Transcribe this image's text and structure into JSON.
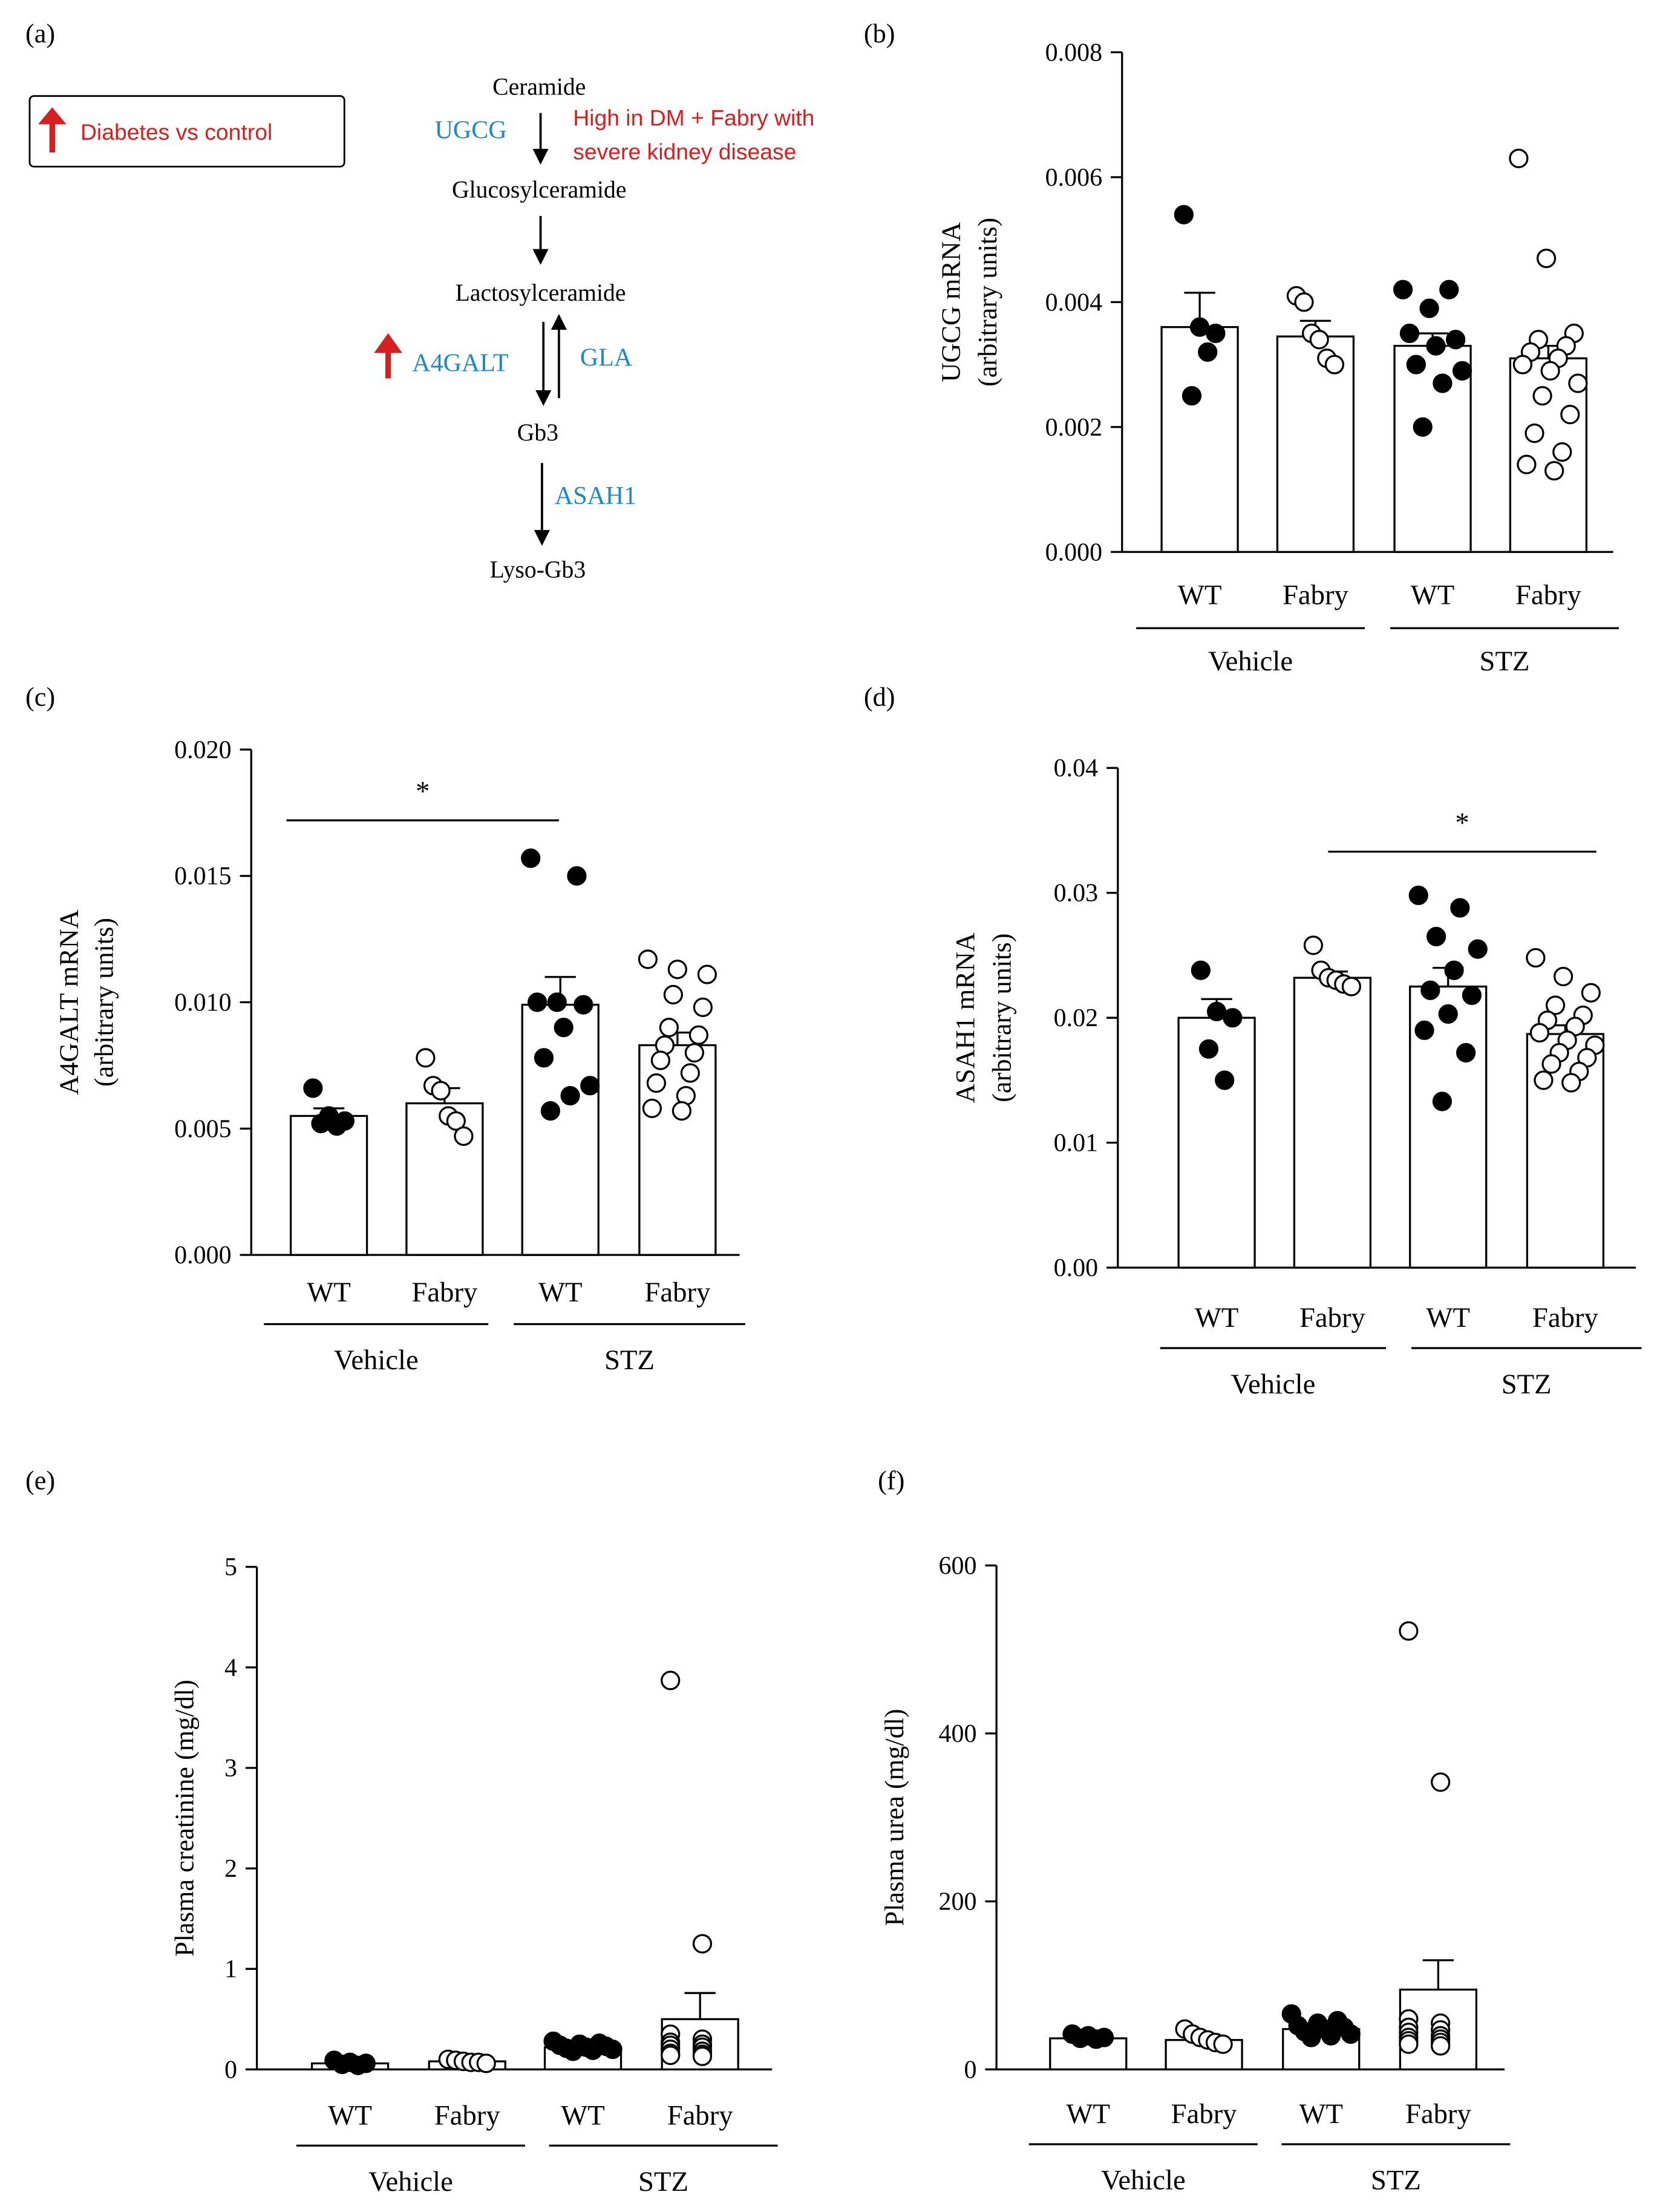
{
  "panel_labels": [
    "(a)",
    "(b)",
    "(c)",
    "(d)",
    "(e)",
    "(f)"
  ],
  "pathway": {
    "legend": {
      "text": "Diabetes vs control",
      "color": "#d42020"
    },
    "nodes": [
      "Ceramide",
      "Glucosylceramide",
      "Lactosylceramide",
      "Gb3",
      "Lyso-Gb3"
    ],
    "enzymes": {
      "ugcg": "UGCG",
      "a4galt": "A4GALT",
      "gla": "GLA",
      "asah1": "ASAH1"
    },
    "note_line1": "High in DM + Fabry with",
    "note_line2": "severe kidney disease",
    "enzyme_color": "#1e88c8",
    "highlight_color": "#d42020"
  },
  "common": {
    "genotypes": [
      "WT",
      "Fabry",
      "WT",
      "Fabry"
    ],
    "treatments": [
      "Vehicle",
      "STZ"
    ]
  },
  "chart_data": [
    {
      "panel": "(b)",
      "type": "bar",
      "ylabel": "UGCG  mRNA",
      "ylabel2": "(arbitrary units)",
      "ylim": [
        0,
        0.008
      ],
      "ticks": [
        0,
        0.002,
        0.004,
        0.006,
        0.008
      ],
      "tick_labels": [
        "0.000",
        "0.002",
        "0.004",
        "0.006",
        "0.008"
      ],
      "categories": [
        "WT Vehicle",
        "Fabry Vehicle",
        "WT STZ",
        "Fabry STZ"
      ],
      "values": [
        0.0036,
        0.00345,
        0.0033,
        0.0031
      ],
      "sem": [
        0.00055,
        0.00025,
        0.0002,
        0.0002
      ],
      "filled": [
        true,
        false,
        true,
        false
      ],
      "points": [
        [
          0.0054,
          0.0036,
          0.0035,
          0.0025,
          0.0032
        ],
        [
          0.0041,
          0.004,
          0.0035,
          0.0034,
          0.0031,
          0.003
        ],
        [
          0.0042,
          0.0042,
          0.0039,
          0.0035,
          0.0034,
          0.0033,
          0.003,
          0.0029,
          0.0027,
          0.002
        ],
        [
          0.0063,
          0.0047,
          0.0035,
          0.0034,
          0.0033,
          0.0032,
          0.0031,
          0.003,
          0.0029,
          0.0027,
          0.0025,
          0.0022,
          0.0019,
          0.0016,
          0.0014,
          0.0013
        ]
      ],
      "significance": null
    },
    {
      "panel": "(c)",
      "type": "bar",
      "ylabel": "A4GALT  mRNA",
      "ylabel2": "(arbitrary units)",
      "ylim": [
        0,
        0.02
      ],
      "ticks": [
        0,
        0.005,
        0.01,
        0.015,
        0.02
      ],
      "tick_labels": [
        "0.000",
        "0.005",
        "0.010",
        "0.015",
        "0.020"
      ],
      "categories": [
        "WT Vehicle",
        "Fabry Vehicle",
        "WT STZ",
        "Fabry STZ"
      ],
      "values": [
        0.0055,
        0.006,
        0.0099,
        0.0083
      ],
      "sem": [
        0.0003,
        0.0006,
        0.0011,
        0.0005
      ],
      "filled": [
        true,
        false,
        true,
        false
      ],
      "points": [
        [
          0.0066,
          0.0055,
          0.0053,
          0.0052,
          0.0051
        ],
        [
          0.0078,
          0.0067,
          0.0065,
          0.0055,
          0.0053,
          0.0047
        ],
        [
          0.0157,
          0.015,
          0.01,
          0.01,
          0.0099,
          0.009,
          0.0078,
          0.0067,
          0.0063,
          0.0057
        ],
        [
          0.0117,
          0.0113,
          0.0111,
          0.0103,
          0.0098,
          0.009,
          0.0087,
          0.0083,
          0.008,
          0.0077,
          0.0072,
          0.0068,
          0.0063,
          0.0058,
          0.0057
        ]
      ],
      "significance": {
        "from": 0,
        "to": 2,
        "y": 0.0172,
        "label": "*"
      }
    },
    {
      "panel": "(d)",
      "type": "bar",
      "ylabel": "ASAH1 mRNA",
      "ylabel2": "(arbitrary units)",
      "ylim": [
        0,
        0.04
      ],
      "ticks": [
        0,
        0.01,
        0.02,
        0.03,
        0.04
      ],
      "tick_labels": [
        "0.00",
        "0.01",
        "0.02",
        "0.03",
        "0.04"
      ],
      "categories": [
        "WT Vehicle",
        "Fabry Vehicle",
        "WT STZ",
        "Fabry STZ"
      ],
      "values": [
        0.02,
        0.0232,
        0.0225,
        0.0187
      ],
      "sem": [
        0.0015,
        0.0005,
        0.0015,
        0.0007
      ],
      "filled": [
        true,
        false,
        true,
        false
      ],
      "points": [
        [
          0.0238,
          0.0205,
          0.02,
          0.0175,
          0.015
        ],
        [
          0.0258,
          0.0238,
          0.0232,
          0.023,
          0.0227,
          0.0225
        ],
        [
          0.0298,
          0.0288,
          0.0265,
          0.0255,
          0.0238,
          0.0222,
          0.0218,
          0.0203,
          0.019,
          0.0172,
          0.0133
        ],
        [
          0.0248,
          0.0233,
          0.022,
          0.021,
          0.0202,
          0.0198,
          0.0193,
          0.0188,
          0.0182,
          0.0178,
          0.0172,
          0.0168,
          0.0163,
          0.0157,
          0.015,
          0.0148
        ]
      ],
      "significance": {
        "from": 1,
        "to": 3,
        "y": 0.0333,
        "label": "*"
      }
    },
    {
      "panel": "(e)",
      "type": "bar",
      "ylabel": "Plasma creatinine (mg/dl)",
      "ylabel2": "",
      "ylim": [
        0,
        5
      ],
      "ticks": [
        0,
        1,
        2,
        3,
        4,
        5
      ],
      "tick_labels": [
        "0",
        "1",
        "2",
        "3",
        "4",
        "5"
      ],
      "categories": [
        "WT Vehicle",
        "Fabry Vehicle",
        "WT STZ",
        "Fabry STZ"
      ],
      "values": [
        0.06,
        0.08,
        0.22,
        0.5
      ],
      "sem": [
        0.01,
        0.01,
        0.02,
        0.26
      ],
      "filled": [
        true,
        false,
        true,
        false
      ],
      "points": [
        [
          0.09,
          0.07,
          0.06,
          0.05,
          0.04
        ],
        [
          0.1,
          0.09,
          0.08,
          0.07,
          0.07,
          0.06
        ],
        [
          0.28,
          0.26,
          0.25,
          0.24,
          0.23,
          0.22,
          0.21,
          0.2,
          0.19,
          0.18
        ],
        [
          3.87,
          1.25,
          0.35,
          0.3,
          0.27,
          0.25,
          0.24,
          0.22,
          0.2,
          0.18,
          0.16,
          0.15,
          0.14,
          0.13
        ]
      ],
      "significance": null
    },
    {
      "panel": "(f)",
      "type": "bar",
      "ylabel": "Plasma urea (mg/dl)",
      "ylabel2": "",
      "ylim": [
        0,
        600
      ],
      "ticks": [
        0,
        200,
        400,
        600
      ],
      "tick_labels": [
        "0",
        "200",
        "400",
        "600"
      ],
      "categories": [
        "WT Vehicle",
        "Fabry Vehicle",
        "WT STZ",
        "Fabry STZ"
      ],
      "values": [
        37,
        35,
        48,
        95
      ],
      "sem": [
        2,
        3,
        4,
        35
      ],
      "filled": [
        true,
        false,
        true,
        false
      ],
      "points": [
        [
          42,
          40,
          38,
          37,
          36
        ],
        [
          48,
          42,
          38,
          35,
          32,
          30
        ],
        [
          66,
          58,
          55,
          52,
          50,
          48,
          45,
          42,
          40,
          38
        ],
        [
          522,
          342,
          60,
          55,
          50,
          47,
          44,
          40,
          38,
          36,
          34,
          32,
          30,
          28
        ]
      ],
      "significance": null
    }
  ]
}
